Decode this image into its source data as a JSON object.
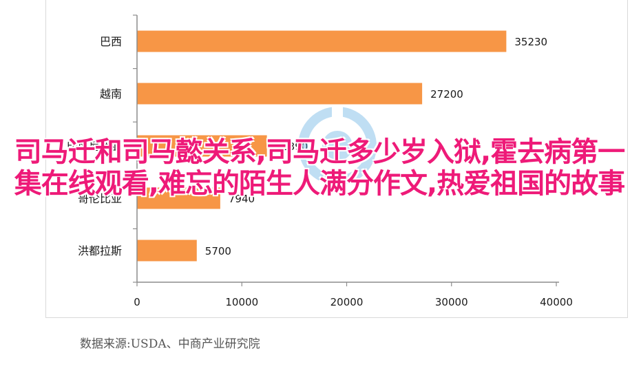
{
  "chart_data": {
    "type": "bar",
    "orientation": "horizontal",
    "categories": [
      "巴西",
      "越南",
      "印度尼西亚",
      "哥伦比亚",
      "洪都拉斯"
    ],
    "values": [
      35230,
      27200,
      12390,
      7940,
      5700
    ],
    "value_labels": [
      "35230",
      "27200",
      "12390",
      "7940",
      "5700"
    ],
    "xlim": [
      0,
      40000
    ],
    "x_ticks": [
      "0",
      "10000",
      "20000",
      "30000",
      "40000"
    ],
    "bar_color": "#f79646",
    "grid": false
  },
  "overlay": {
    "title": "司马迁和司马懿关系,司马迁多少岁入狱,霍去病第一集在线观看,难忘的陌生人满分作文,热爱祖国的故事",
    "color": "#ee1a78"
  },
  "source_note": "数据来源:USDA、中商产业研究院",
  "watermark": {
    "icon": "circular-logo-icon",
    "color": "#4aa3df"
  }
}
